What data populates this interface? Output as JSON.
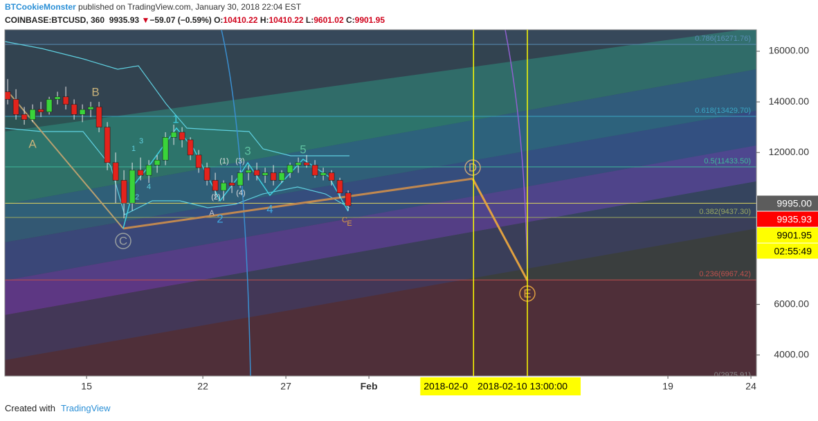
{
  "header": {
    "author": "BTCookieMonster",
    "published": "published on TradingView.com, January 30, 2018 22:04 EST",
    "symbol": "COINBASE:BTCUSD, 360",
    "last": "9935.93",
    "arrow": "▼",
    "change": "−59.07 (−0.59%)",
    "o_label": "O:",
    "open": "10410.22",
    "h_label": "H:",
    "high": "10410.22",
    "l_label": "L:",
    "low": "9601.02",
    "c_label": "C:",
    "close": "9901.95"
  },
  "chart_data": {
    "type": "candlestick",
    "x": [
      10.25,
      10.75,
      11.25,
      11.75,
      12.25,
      12.75,
      13.25,
      13.75,
      14.25,
      14.75,
      15.25,
      15.75,
      16.25,
      16.75,
      17.25,
      17.75,
      18.25,
      18.75,
      19.25,
      19.75,
      20.25,
      20.75,
      21.25,
      21.75,
      22.25,
      22.75,
      23.25,
      23.75,
      24.25,
      24.75,
      25.25,
      25.75,
      26.25,
      26.75,
      27.25,
      27.75,
      28.25,
      28.75,
      29.25,
      29.75,
      30.25,
      30.75
    ],
    "open": [
      14400,
      14100,
      13500,
      13300,
      13700,
      13600,
      14100,
      14200,
      13900,
      13500,
      13700,
      13800,
      13000,
      11600,
      10900,
      10000,
      11300,
      11100,
      11500,
      11700,
      12600,
      12800,
      12500,
      11900,
      11400,
      10900,
      10500,
      10800,
      10700,
      11200,
      11300,
      11100,
      11200,
      10900,
      11200,
      11500,
      11600,
      11500,
      11100,
      11200,
      10900,
      10400
    ],
    "high": [
      14900,
      14500,
      13800,
      13900,
      14000,
      14200,
      14400,
      14600,
      14100,
      13900,
      14000,
      14000,
      13200,
      12000,
      11300,
      11600,
      11800,
      11700,
      11900,
      12800,
      13100,
      13000,
      12600,
      12100,
      11600,
      11200,
      10900,
      11100,
      11300,
      11500,
      11600,
      11400,
      11500,
      11300,
      11600,
      11800,
      11900,
      11700,
      11400,
      11300,
      11000,
      10500
    ],
    "low": [
      13900,
      13300,
      13100,
      13200,
      13400,
      13500,
      13900,
      13700,
      13300,
      13200,
      13400,
      12800,
      11300,
      10000,
      9400,
      9700,
      10900,
      10800,
      11200,
      11500,
      12300,
      12200,
      11700,
      11200,
      10700,
      10200,
      10100,
      10400,
      10600,
      10900,
      10900,
      10800,
      10700,
      10800,
      11000,
      11200,
      11400,
      11000,
      10900,
      10700,
      10200,
      9700
    ],
    "close": [
      14100,
      13500,
      13300,
      13700,
      13600,
      14100,
      14200,
      13900,
      13500,
      13700,
      13800,
      13000,
      11600,
      10900,
      10000,
      11300,
      11100,
      11500,
      11700,
      12600,
      12800,
      12500,
      11900,
      11400,
      10900,
      10500,
      10800,
      10700,
      11200,
      11300,
      11100,
      11200,
      10900,
      11200,
      11500,
      11600,
      11500,
      11100,
      11200,
      10900,
      10400,
      9900
    ],
    "up_color": "#3ad43a",
    "down_color": "#e3231c",
    "xlim": [
      10.08,
      55.33
    ],
    "xticks": [
      15,
      22,
      27,
      {
        "value": 32,
        "label": "Feb"
      },
      {
        "value": 50,
        "label": "19"
      },
      {
        "value": 55,
        "label": "24"
      }
    ],
    "ylim": [
      3172,
      16848
    ],
    "yticks": [
      {
        "value": 16000,
        "label": "16000.00"
      },
      {
        "value": 14000,
        "label": "14000.00"
      },
      {
        "value": 12000,
        "label": "12000.00"
      },
      {
        "value": 6000,
        "label": "6000.00"
      },
      {
        "value": 4000,
        "label": "4000.00"
      }
    ],
    "fib_levels": [
      {
        "value": 16271.76,
        "label": "0.786(16271.76)",
        "color": "#5a8db5",
        "fill": "rgba(70,110,140,0.35)"
      },
      {
        "value": 13429.7,
        "label": "0.618(13429.70)",
        "color": "#3aa6c4",
        "fill": "rgba(60,100,120,0.30)"
      },
      {
        "value": 11433.5,
        "label": "0.5(11433.50)",
        "color": "#3fb89a",
        "fill": "rgba(40,140,120,0.35)"
      },
      {
        "value": 9437.3,
        "label": "0.382(9437.30)",
        "color": "#9aa860",
        "fill": "rgba(50,130,100,0.30)"
      },
      {
        "value": 6967.42,
        "label": "0.236(6967.42)",
        "color": "#c0504d",
        "fill": "rgba(80,80,60,0.35)"
      },
      {
        "value": 2975.91,
        "label": "0(2975.91)",
        "color": "#8a8a8a",
        "fill": "rgba(120,40,50,0.45)"
      }
    ],
    "price_labels": [
      {
        "value": 9995,
        "label": "9995.00",
        "color": "#5c5c5c",
        "text_color": "#ffffff"
      },
      {
        "value": 9935.93,
        "label": "9935.93",
        "color": "#ff0000",
        "text_color": "#ffffff"
      },
      {
        "value": 9901.95,
        "label": "9901.95",
        "color": "#ffff00",
        "text_color": "#000000"
      }
    ],
    "countdown": "02:55:49",
    "countdown_color": "#ffff00",
    "date_markers": [
      {
        "x": 38.3,
        "label": "2018-02-0",
        "color": "#ffff00"
      },
      {
        "x": 41.54,
        "label": "2018-02-10 13:00:00",
        "color": "#ffff00"
      }
    ],
    "annotations": [
      "A",
      "B",
      "C",
      "D",
      "E",
      "1",
      "2",
      "3",
      "4",
      "5",
      "(1)",
      "(2)",
      "(3)",
      "(4)",
      "A",
      "C",
      "E",
      "4",
      "3",
      "1",
      "2"
    ]
  },
  "footer": {
    "created": "Created with",
    "brand": "TradingView"
  }
}
